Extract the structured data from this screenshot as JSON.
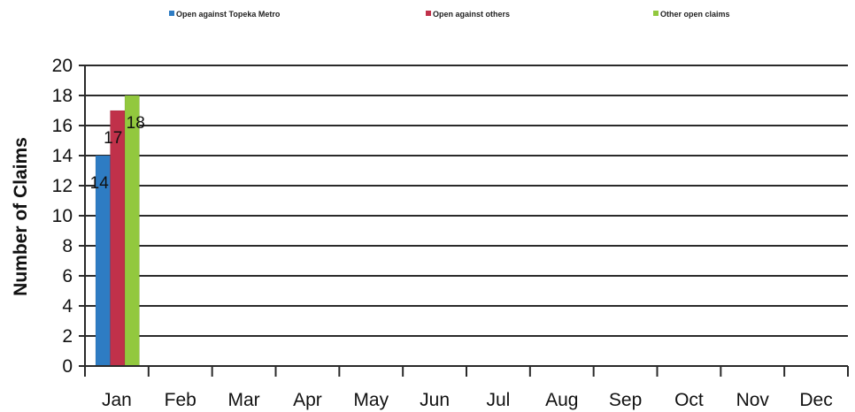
{
  "chart_data": {
    "type": "bar",
    "title": "",
    "xlabel": "",
    "ylabel": "Number of Claims",
    "ylim": [
      0,
      20
    ],
    "yticks": [
      0,
      2,
      4,
      6,
      8,
      10,
      12,
      14,
      16,
      18,
      20
    ],
    "grid": true,
    "legend_position": "top",
    "categories": [
      "Jan",
      "Feb",
      "Mar",
      "Apr",
      "May",
      "Jun",
      "Jul",
      "Aug",
      "Sep",
      "Oct",
      "Nov",
      "Dec"
    ],
    "series": [
      {
        "name": "Open against Topeka Metro",
        "color": "#2E7CC3",
        "values": [
          14,
          null,
          null,
          null,
          null,
          null,
          null,
          null,
          null,
          null,
          null,
          null
        ],
        "labels": [
          "14",
          "",
          "",
          "",
          "",
          "",
          "",
          "",
          "",
          "",
          "",
          ""
        ]
      },
      {
        "name": "Open against others",
        "color": "#C0314A",
        "values": [
          17,
          null,
          null,
          null,
          null,
          null,
          null,
          null,
          null,
          null,
          null,
          null
        ],
        "labels": [
          "17",
          "",
          "",
          "",
          "",
          "",
          "",
          "",
          "",
          "",
          "",
          ""
        ]
      },
      {
        "name": "Other open claims",
        "color": "#92C83E",
        "values": [
          18,
          null,
          null,
          null,
          null,
          null,
          null,
          null,
          null,
          null,
          null,
          null
        ],
        "labels": [
          "18",
          "",
          "",
          "",
          "",
          "",
          "",
          "",
          "",
          "",
          "",
          ""
        ]
      }
    ]
  }
}
